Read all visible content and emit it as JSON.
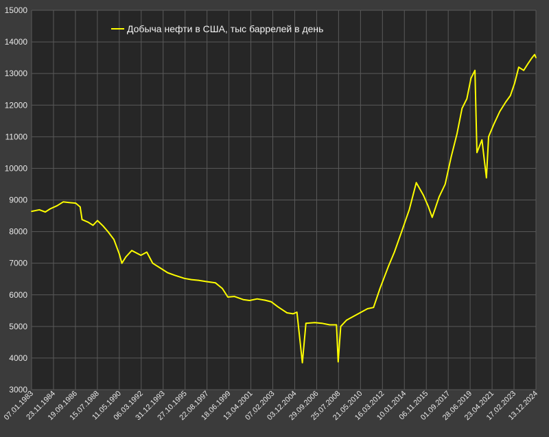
{
  "chart_data": {
    "type": "line",
    "legend_position": "top-left",
    "grid": true,
    "colors": {
      "background": "#3b3b3b",
      "plot_area": "#262626",
      "grid": "#5a5a5a",
      "series": "#ffff00",
      "text": "#e8e8e8"
    },
    "ylim": [
      3000,
      15000
    ],
    "y_ticks": [
      "3000",
      "4000",
      "5000",
      "6000",
      "7000",
      "8000",
      "9000",
      "10000",
      "11000",
      "12000",
      "13000",
      "14000",
      "15000"
    ],
    "x_range": [
      "1983-01-07",
      "2025-04-11"
    ],
    "x_tick_labels": [
      "07.01.1983",
      "23.11.1984",
      "19.09.1986",
      "15.07.1988",
      "11.05.1990",
      "06.03.1992",
      "31.12.1993",
      "27.10.1995",
      "22.08.1997",
      "18.06.1999",
      "13.04.2001",
      "07.02.2003",
      "03.12.2004",
      "29.09.2006",
      "25.07.2008",
      "21.05.2010",
      "16.03.2012",
      "10.01.2014",
      "06.11.2015",
      "01.09.2017",
      "28.06.2019",
      "23.04.2021",
      "17.02.2023",
      "13.12.2024"
    ],
    "series": [
      {
        "name": "Добыча нефти в США, тыс баррелей в день",
        "points": [
          [
            "1983-01-07",
            8640
          ],
          [
            "1983-09-01",
            8690
          ],
          [
            "1984-03-01",
            8620
          ],
          [
            "1984-08-01",
            8720
          ],
          [
            "1985-03-01",
            8820
          ],
          [
            "1985-09-01",
            8940
          ],
          [
            "1986-03-01",
            8920
          ],
          [
            "1986-09-19",
            8900
          ],
          [
            "1987-02-01",
            8780
          ],
          [
            "1987-04-01",
            8380
          ],
          [
            "1987-10-01",
            8300
          ],
          [
            "1988-03-01",
            8200
          ],
          [
            "1988-07-15",
            8350
          ],
          [
            "1989-01-01",
            8180
          ],
          [
            "1989-06-01",
            8000
          ],
          [
            "1989-12-01",
            7750
          ],
          [
            "1990-05-11",
            7300
          ],
          [
            "1990-08-01",
            7000
          ],
          [
            "1990-12-01",
            7200
          ],
          [
            "1991-06-01",
            7400
          ],
          [
            "1992-03-06",
            7250
          ],
          [
            "1992-09-01",
            7350
          ],
          [
            "1993-03-01",
            7000
          ],
          [
            "1993-12-31",
            6800
          ],
          [
            "1994-06-01",
            6700
          ],
          [
            "1995-01-01",
            6620
          ],
          [
            "1995-10-27",
            6520
          ],
          [
            "1996-06-01",
            6480
          ],
          [
            "1997-01-01",
            6460
          ],
          [
            "1997-08-22",
            6420
          ],
          [
            "1998-06-01",
            6380
          ],
          [
            "1999-01-01",
            6200
          ],
          [
            "1999-06-18",
            5930
          ],
          [
            "2000-01-01",
            5950
          ],
          [
            "2000-10-01",
            5850
          ],
          [
            "2001-04-13",
            5820
          ],
          [
            "2001-12-01",
            5870
          ],
          [
            "2002-08-01",
            5830
          ],
          [
            "2003-02-07",
            5780
          ],
          [
            "2003-09-01",
            5620
          ],
          [
            "2004-06-01",
            5430
          ],
          [
            "2004-12-03",
            5400
          ],
          [
            "2005-04-01",
            5450
          ],
          [
            "2005-09-15",
            3850
          ],
          [
            "2006-01-01",
            5100
          ],
          [
            "2006-09-29",
            5120
          ],
          [
            "2007-05-01",
            5100
          ],
          [
            "2008-01-01",
            5050
          ],
          [
            "2008-07-25",
            5050
          ],
          [
            "2008-09-15",
            3880
          ],
          [
            "2008-12-01",
            5000
          ],
          [
            "2009-06-01",
            5200
          ],
          [
            "2010-05-21",
            5400
          ],
          [
            "2011-03-01",
            5560
          ],
          [
            "2011-09-01",
            5600
          ],
          [
            "2012-03-16",
            6200
          ],
          [
            "2012-12-01",
            6900
          ],
          [
            "2013-06-01",
            7350
          ],
          [
            "2014-01-10",
            8000
          ],
          [
            "2014-09-01",
            8700
          ],
          [
            "2015-04-01",
            9550
          ],
          [
            "2015-11-06",
            9150
          ],
          [
            "2016-04-01",
            8800
          ],
          [
            "2016-08-01",
            8450
          ],
          [
            "2017-03-01",
            9100
          ],
          [
            "2017-09-01",
            9500
          ],
          [
            "2018-03-01",
            10350
          ],
          [
            "2018-09-01",
            11100
          ],
          [
            "2019-02-01",
            11900
          ],
          [
            "2019-06-28",
            12200
          ],
          [
            "2019-11-01",
            12850
          ],
          [
            "2020-03-01",
            13100
          ],
          [
            "2020-05-01",
            10500
          ],
          [
            "2020-10-01",
            10900
          ],
          [
            "2021-02-15",
            9700
          ],
          [
            "2021-04-23",
            11000
          ],
          [
            "2021-10-01",
            11400
          ],
          [
            "2022-04-01",
            11800
          ],
          [
            "2022-10-01",
            12100
          ],
          [
            "2023-02-17",
            12300
          ],
          [
            "2023-07-01",
            12700
          ],
          [
            "2023-11-01",
            13200
          ],
          [
            "2024-04-01",
            13100
          ],
          [
            "2024-08-01",
            13300
          ],
          [
            "2024-12-13",
            13500
          ],
          [
            "2025-03-01",
            13600
          ],
          [
            "2025-04-11",
            13500
          ]
        ]
      }
    ]
  }
}
